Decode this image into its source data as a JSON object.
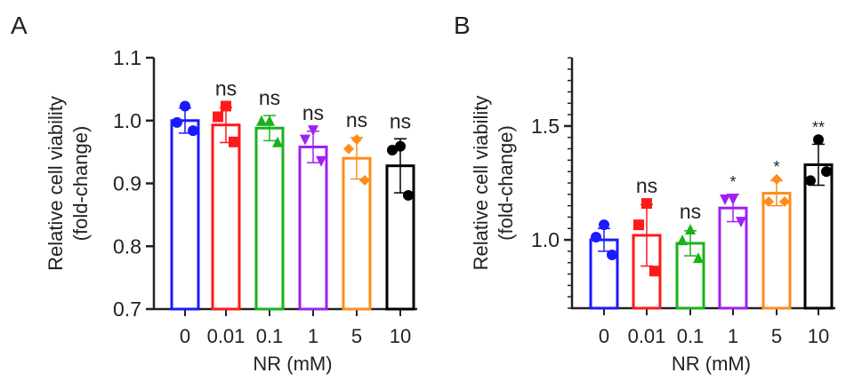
{
  "chart_data": [
    {
      "type": "bar",
      "panel_label": "A",
      "categories": [
        "0",
        "0.01",
        "0.1",
        "1",
        "5",
        "10"
      ],
      "values": [
        1.0,
        0.993,
        0.988,
        0.958,
        0.94,
        0.928
      ],
      "points": [
        [
          1.023,
          0.997,
          0.984
        ],
        [
          1.023,
          1.006,
          0.966
        ],
        [
          1.0,
          1.0,
          0.966
        ],
        [
          0.984,
          0.969,
          0.935
        ],
        [
          0.97,
          0.955,
          0.905
        ],
        [
          0.959,
          0.953,
          0.881
        ]
      ],
      "error": [
        0.02,
        0.028,
        0.02,
        0.025,
        0.033,
        0.043
      ],
      "annotations": [
        "",
        "ns",
        "ns",
        "ns",
        "ns",
        "ns"
      ],
      "colors": [
        "#1a1aff",
        "#ff1a1a",
        "#1ab21a",
        "#a020f0",
        "#ff8c1a",
        "#000000"
      ],
      "markers": [
        "circle",
        "square",
        "triangle",
        "triangle-down",
        "diamond",
        "circle"
      ],
      "xlabel": "NR (mM)",
      "ylabel": [
        "Relative cell viability",
        "(fold-change)"
      ],
      "ylim": [
        0.7,
        1.1
      ],
      "yticks": [
        0.7,
        0.8,
        0.9,
        1.0,
        1.1
      ],
      "ytick_labels": [
        "0.7",
        "0.8",
        "0.9",
        "1.0",
        "1.1"
      ]
    },
    {
      "type": "bar",
      "panel_label": "B",
      "categories": [
        "0",
        "0.01",
        "0.1",
        "1",
        "5",
        "10"
      ],
      "values": [
        1.0,
        1.02,
        0.985,
        1.14,
        1.205,
        1.33
      ],
      "points": [
        [
          1.066,
          1.012,
          0.934
        ],
        [
          1.16,
          1.066,
          0.863
        ],
        [
          1.047,
          1.0,
          0.922
        ],
        [
          1.176,
          1.176,
          1.078
        ],
        [
          1.266,
          1.168,
          1.168
        ],
        [
          1.44,
          1.26,
          1.3
        ]
      ],
      "error": [
        0.05,
        0.135,
        0.055,
        0.06,
        0.055,
        0.09
      ],
      "annotations": [
        "",
        "ns",
        "ns",
        "*",
        "*",
        "**"
      ],
      "colors": [
        "#1a1aff",
        "#ff1a1a",
        "#1ab21a",
        "#a020f0",
        "#ff8c1a",
        "#000000"
      ],
      "markers": [
        "circle",
        "square",
        "triangle",
        "triangle-down",
        "diamond",
        "circle"
      ],
      "xlabel": "NR (mM)",
      "ylabel": [
        "Relative cell viability",
        "(fold-change)"
      ],
      "ylim": [
        0.7,
        1.8
      ],
      "yticks": [
        1.0,
        1.5
      ],
      "ytick_labels": [
        "1.0",
        "1.5"
      ],
      "minor_tick_step": 0.05
    }
  ]
}
